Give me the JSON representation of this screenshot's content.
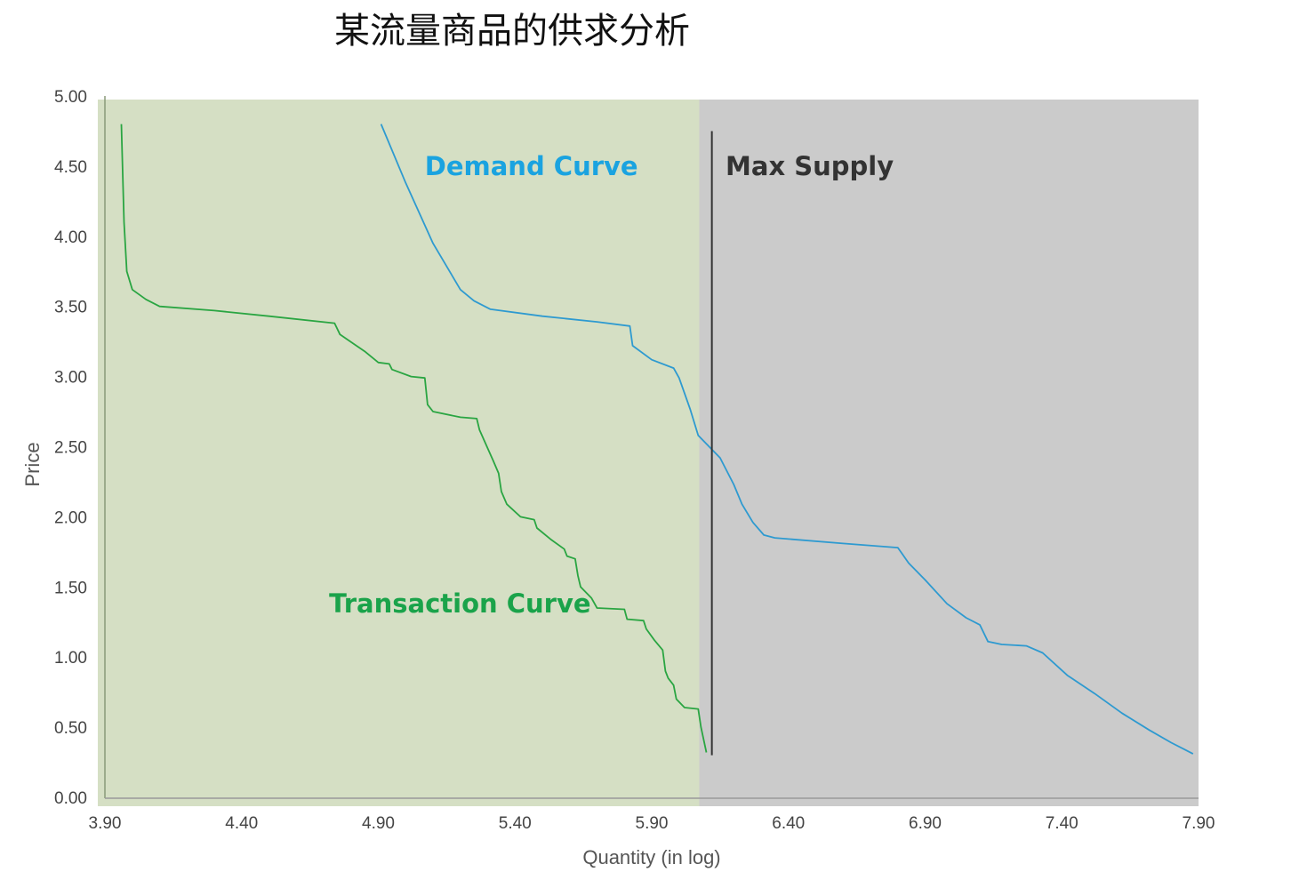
{
  "title": "某流量商品的供求分析",
  "chart_data": {
    "type": "line",
    "xlabel": "Quantity (in log)",
    "ylabel": "Price",
    "xlim": [
      3.9,
      7.9
    ],
    "ylim": [
      0,
      5
    ],
    "x_ticks": [
      "3.90",
      "4.40",
      "4.90",
      "5.40",
      "5.90",
      "6.40",
      "6.90",
      "7.40",
      "7.90"
    ],
    "y_ticks": [
      "0.00",
      "0.50",
      "1.00",
      "1.50",
      "2.00",
      "2.50",
      "3.00",
      "3.50",
      "4.00",
      "4.50",
      "5.00"
    ],
    "shaded_regions": [
      {
        "x": [
          3.9,
          6.1
        ],
        "color": "#d5dfc4"
      },
      {
        "x": [
          6.1,
          7.9
        ],
        "color": "#cbcbcb"
      }
    ],
    "max_supply": {
      "x": 6.12,
      "y_range": [
        0.3,
        4.75
      ],
      "label": "Max Supply",
      "color": "#333333"
    },
    "series": [
      {
        "name": "Demand Curve",
        "color": "#2e9ad0",
        "label_color": "#1aa3e0",
        "points": [
          [
            4.91,
            4.8
          ],
          [
            5.0,
            4.38
          ],
          [
            5.1,
            3.95
          ],
          [
            5.2,
            3.62
          ],
          [
            5.25,
            3.54
          ],
          [
            5.31,
            3.48
          ],
          [
            5.5,
            3.43
          ],
          [
            5.7,
            3.39
          ],
          [
            5.82,
            3.36
          ],
          [
            5.83,
            3.22
          ],
          [
            5.9,
            3.12
          ],
          [
            5.98,
            3.06
          ],
          [
            6.0,
            2.99
          ],
          [
            6.04,
            2.77
          ],
          [
            6.07,
            2.58
          ],
          [
            6.15,
            2.42
          ],
          [
            6.2,
            2.23
          ],
          [
            6.23,
            2.09
          ],
          [
            6.27,
            1.96
          ],
          [
            6.31,
            1.87
          ],
          [
            6.35,
            1.85
          ],
          [
            6.6,
            1.81
          ],
          [
            6.8,
            1.78
          ],
          [
            6.84,
            1.67
          ],
          [
            6.9,
            1.55
          ],
          [
            6.98,
            1.38
          ],
          [
            7.05,
            1.28
          ],
          [
            7.1,
            1.23
          ],
          [
            7.13,
            1.11
          ],
          [
            7.18,
            1.09
          ],
          [
            7.27,
            1.08
          ],
          [
            7.33,
            1.03
          ],
          [
            7.42,
            0.87
          ],
          [
            7.52,
            0.74
          ],
          [
            7.62,
            0.6
          ],
          [
            7.72,
            0.48
          ],
          [
            7.8,
            0.39
          ],
          [
            7.85,
            0.34
          ],
          [
            7.88,
            0.31
          ]
        ]
      },
      {
        "name": "Transaction Curve",
        "color": "#2aa542",
        "label_color": "#1aa34a",
        "points": [
          [
            3.96,
            4.8
          ],
          [
            3.97,
            4.1
          ],
          [
            3.98,
            3.75
          ],
          [
            4.0,
            3.62
          ],
          [
            4.05,
            3.55
          ],
          [
            4.1,
            3.5
          ],
          [
            4.3,
            3.47
          ],
          [
            4.5,
            3.43
          ],
          [
            4.74,
            3.38
          ],
          [
            4.76,
            3.3
          ],
          [
            4.85,
            3.18
          ],
          [
            4.9,
            3.1
          ],
          [
            4.94,
            3.09
          ],
          [
            4.95,
            3.05
          ],
          [
            5.02,
            3.0
          ],
          [
            5.07,
            2.99
          ],
          [
            5.08,
            2.8
          ],
          [
            5.1,
            2.75
          ],
          [
            5.2,
            2.71
          ],
          [
            5.26,
            2.7
          ],
          [
            5.27,
            2.62
          ],
          [
            5.32,
            2.4
          ],
          [
            5.34,
            2.31
          ],
          [
            5.35,
            2.18
          ],
          [
            5.37,
            2.09
          ],
          [
            5.42,
            2.0
          ],
          [
            5.47,
            1.98
          ],
          [
            5.48,
            1.92
          ],
          [
            5.53,
            1.84
          ],
          [
            5.58,
            1.77
          ],
          [
            5.59,
            1.72
          ],
          [
            5.62,
            1.7
          ],
          [
            5.63,
            1.58
          ],
          [
            5.64,
            1.5
          ],
          [
            5.68,
            1.42
          ],
          [
            5.7,
            1.35
          ],
          [
            5.8,
            1.34
          ],
          [
            5.81,
            1.27
          ],
          [
            5.87,
            1.26
          ],
          [
            5.88,
            1.2
          ],
          [
            5.91,
            1.12
          ],
          [
            5.94,
            1.05
          ],
          [
            5.95,
            0.9
          ],
          [
            5.96,
            0.85
          ],
          [
            5.98,
            0.8
          ],
          [
            5.99,
            0.7
          ],
          [
            6.02,
            0.64
          ],
          [
            6.07,
            0.63
          ],
          [
            6.08,
            0.5
          ],
          [
            6.1,
            0.32
          ]
        ]
      }
    ],
    "annotations": [
      {
        "text": "Demand Curve",
        "x": 5.07,
        "y": 4.5,
        "series": 0
      },
      {
        "text": "Transaction Curve",
        "x": 4.72,
        "y": 1.38,
        "series": 1
      },
      {
        "text": "Max Supply",
        "x": 6.17,
        "y": 4.5,
        "series": -1
      }
    ]
  }
}
